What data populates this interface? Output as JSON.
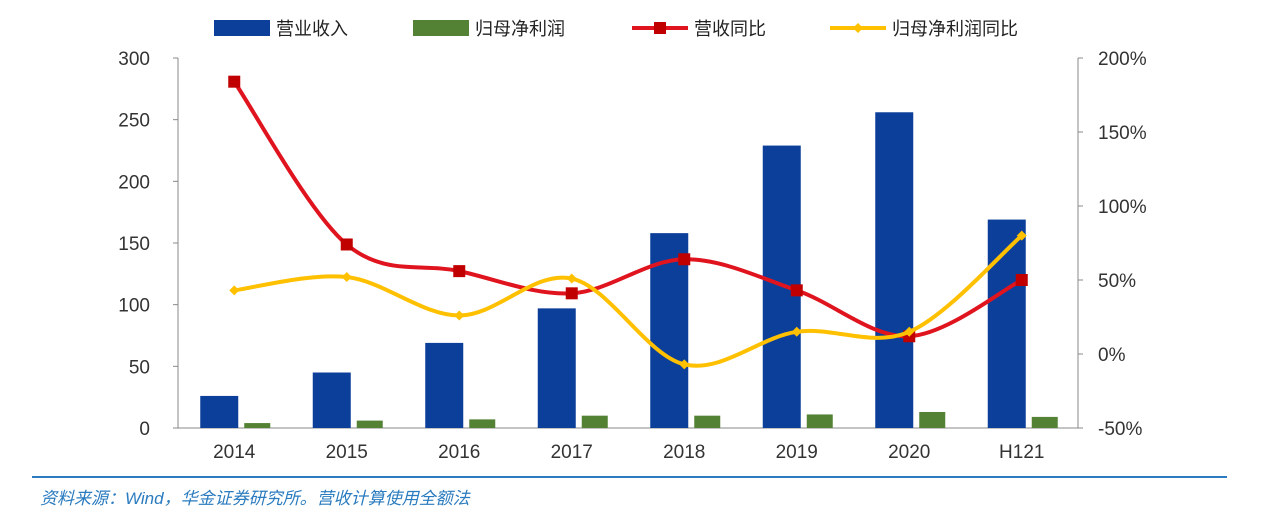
{
  "chart_data": {
    "type": "bar+line",
    "categories": [
      "2014",
      "2015",
      "2016",
      "2017",
      "2018",
      "2019",
      "2020",
      "H121"
    ],
    "series": [
      {
        "name": "营业收入",
        "kind": "bar",
        "axis": "left",
        "color": "#0c3f9a",
        "values": [
          26,
          45,
          69,
          97,
          158,
          229,
          256,
          169
        ]
      },
      {
        "name": "归母净利润",
        "kind": "bar",
        "axis": "left",
        "color": "#548235",
        "values": [
          4,
          6,
          7,
          10,
          10,
          11,
          13,
          9
        ]
      },
      {
        "name": "营收同比",
        "kind": "line",
        "axis": "right",
        "color": "#e0141e",
        "marker": "square",
        "values": [
          184,
          74,
          56,
          41,
          64,
          43,
          12,
          50
        ]
      },
      {
        "name": "归母净利润同比",
        "kind": "line",
        "axis": "right",
        "color": "#ffc000",
        "marker": "diamond",
        "values": [
          43,
          52,
          26,
          51,
          -7,
          15,
          15,
          80
        ]
      }
    ],
    "left_axis": {
      "ylim": [
        0,
        300
      ],
      "ticks": [
        "0",
        "50",
        "100",
        "150",
        "200",
        "250",
        "300"
      ]
    },
    "right_axis": {
      "ylim": [
        -50,
        200
      ],
      "unit": "%",
      "ticks": [
        "-50%",
        "0%",
        "50%",
        "100%",
        "150%",
        "200%"
      ]
    },
    "legend": "top",
    "grid": false
  },
  "source": "资料来源：Wind，华金证券研究所。营收计算使用全额法"
}
